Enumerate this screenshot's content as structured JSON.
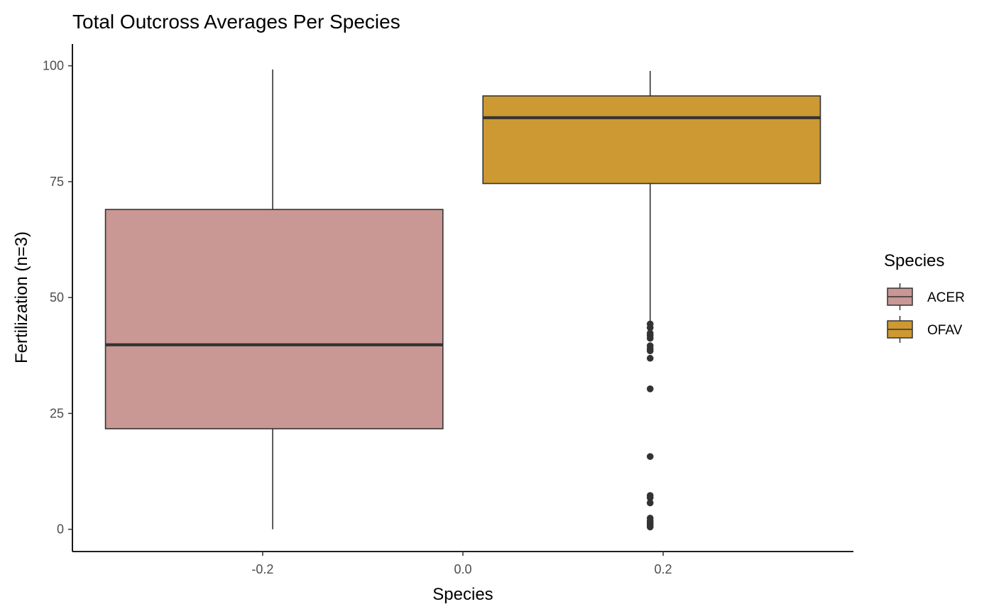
{
  "chart_data": {
    "type": "boxplot",
    "title": "Total Outcross Averages Per Species",
    "xlabel": "Species",
    "ylabel": "Fertilization (n=3)",
    "xlim": [
      -0.39,
      0.39
    ],
    "ylim": [
      -4.8,
      104.7
    ],
    "x_ticks": [
      -0.2,
      0.0,
      0.2
    ],
    "x_tick_labels": [
      "-0.2",
      "0.0",
      "0.2"
    ],
    "y_ticks": [
      0,
      25,
      50,
      75,
      100
    ],
    "y_tick_labels": [
      "0",
      "25",
      "50",
      "75",
      "100"
    ],
    "grid": false,
    "legend_title": "Species",
    "legend_position": "right",
    "series": [
      {
        "name": "ACER",
        "color": "#C99794",
        "x_center": -0.19,
        "box_x_range": [
          -0.357,
          -0.02
        ],
        "whisker_low": 0,
        "q1": 21.7,
        "median": 39.8,
        "q3": 69.0,
        "whisker_high": 99.2,
        "outliers": []
      },
      {
        "name": "OFAV",
        "color": "#CC9933",
        "x_center": 0.187,
        "box_x_range": [
          0.02,
          0.357
        ],
        "whisker_low": 44.9,
        "q1": 74.6,
        "median": 88.8,
        "q3": 93.5,
        "whisker_high": 98.9,
        "outliers": [
          44.3,
          43.5,
          42.3,
          41.8,
          41.2,
          39.6,
          39.0,
          38.5,
          36.9,
          30.3,
          15.7,
          7.3,
          6.8,
          5.7,
          2.4,
          1.8,
          1.3,
          0.9,
          0.5
        ]
      }
    ]
  }
}
